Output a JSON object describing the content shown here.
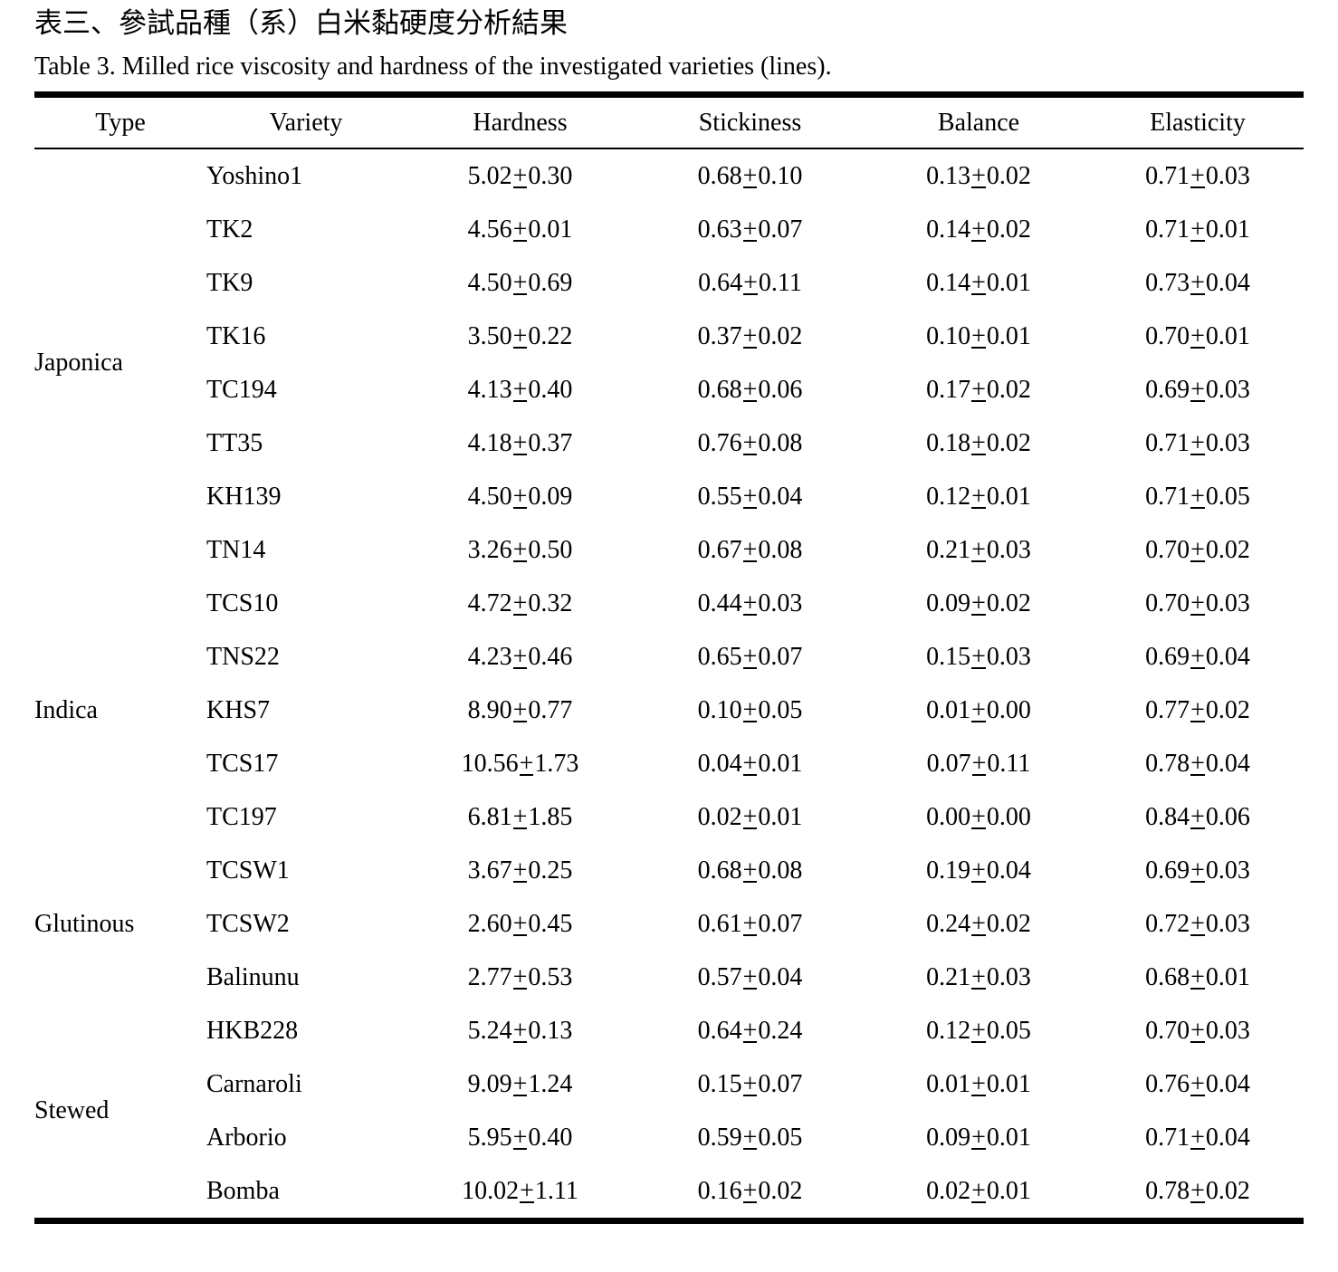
{
  "page": {
    "title_zh": "表三、參試品種（系）白米黏硬度分析結果",
    "title_en": "Table 3. Milled rice viscosity and hardness of the investigated varieties (lines)."
  },
  "table": {
    "columns": [
      {
        "key": "type",
        "label": "Type"
      },
      {
        "key": "variety",
        "label": "Variety"
      },
      {
        "key": "hardness",
        "label": "Hardness"
      },
      {
        "key": "stickiness",
        "label": "Stickiness"
      },
      {
        "key": "balance",
        "label": "Balance"
      },
      {
        "key": "elasticity",
        "label": "Elasticity"
      }
    ],
    "plus_minus_symbol": "±",
    "groups": [
      {
        "type": "Japonica",
        "rows": [
          {
            "variety": "Yoshino1",
            "hardness": "5.02±0.30",
            "stickiness": "0.68±0.10",
            "balance": "0.13±0.02",
            "elasticity": "0.71±0.03"
          },
          {
            "variety": "TK2",
            "hardness": "4.56±0.01",
            "stickiness": "0.63±0.07",
            "balance": "0.14±0.02",
            "elasticity": "0.71±0.01"
          },
          {
            "variety": "TK9",
            "hardness": "4.50±0.69",
            "stickiness": "0.64±0.11",
            "balance": "0.14±0.01",
            "elasticity": "0.73±0.04"
          },
          {
            "variety": "TK16",
            "hardness": "3.50±0.22",
            "stickiness": "0.37±0.02",
            "balance": "0.10±0.01",
            "elasticity": "0.70±0.01"
          },
          {
            "variety": "TC194",
            "hardness": "4.13±0.40",
            "stickiness": "0.68±0.06",
            "balance": "0.17±0.02",
            "elasticity": "0.69±0.03"
          },
          {
            "variety": "TT35",
            "hardness": "4.18±0.37",
            "stickiness": "0.76±0.08",
            "balance": "0.18±0.02",
            "elasticity": "0.71±0.03"
          },
          {
            "variety": "KH139",
            "hardness": "4.50±0.09",
            "stickiness": "0.55±0.04",
            "balance": "0.12±0.01",
            "elasticity": "0.71±0.05"
          },
          {
            "variety": "TN14",
            "hardness": "3.26±0.50",
            "stickiness": "0.67±0.08",
            "balance": "0.21±0.03",
            "elasticity": "0.70±0.02"
          }
        ]
      },
      {
        "type": "Indica",
        "rows": [
          {
            "variety": "TCS10",
            "hardness": "4.72±0.32",
            "stickiness": "0.44±0.03",
            "balance": "0.09±0.02",
            "elasticity": "0.70±0.03"
          },
          {
            "variety": "TNS22",
            "hardness": "4.23±0.46",
            "stickiness": "0.65±0.07",
            "balance": "0.15±0.03",
            "elasticity": "0.69±0.04"
          },
          {
            "variety": "KHS7",
            "hardness": "8.90±0.77",
            "stickiness": "0.10±0.05",
            "balance": "0.01±0.00",
            "elasticity": "0.77±0.02"
          },
          {
            "variety": "TCS17",
            "hardness": "10.56±1.73",
            "stickiness": "0.04±0.01",
            "balance": "0.07±0.11",
            "elasticity": "0.78±0.04"
          },
          {
            "variety": "TC197",
            "hardness": "6.81±1.85",
            "stickiness": "0.02±0.01",
            "balance": "0.00±0.00",
            "elasticity": "0.84±0.06"
          }
        ]
      },
      {
        "type": "Glutinous",
        "rows": [
          {
            "variety": "TCSW1",
            "hardness": "3.67±0.25",
            "stickiness": "0.68±0.08",
            "balance": "0.19±0.04",
            "elasticity": "0.69±0.03"
          },
          {
            "variety": "TCSW2",
            "hardness": "2.60±0.45",
            "stickiness": "0.61±0.07",
            "balance": "0.24±0.02",
            "elasticity": "0.72±0.03"
          },
          {
            "variety": "Balinunu",
            "hardness": "2.77±0.53",
            "stickiness": "0.57±0.04",
            "balance": "0.21±0.03",
            "elasticity": "0.68±0.01"
          }
        ]
      },
      {
        "type": "Stewed",
        "rows": [
          {
            "variety": "HKB228",
            "hardness": "5.24±0.13",
            "stickiness": "0.64±0.24",
            "balance": "0.12±0.05",
            "elasticity": "0.70±0.03"
          },
          {
            "variety": "Carnaroli",
            "hardness": "9.09±1.24",
            "stickiness": "0.15±0.07",
            "balance": "0.01±0.01",
            "elasticity": "0.76±0.04"
          },
          {
            "variety": "Arborio",
            "hardness": "5.95±0.40",
            "stickiness": "0.59±0.05",
            "balance": "0.09±0.01",
            "elasticity": "0.71±0.04"
          },
          {
            "variety": "Bomba",
            "hardness": "10.02±1.11",
            "stickiness": "0.16±0.02",
            "balance": "0.02±0.01",
            "elasticity": "0.78±0.02"
          }
        ]
      }
    ]
  }
}
